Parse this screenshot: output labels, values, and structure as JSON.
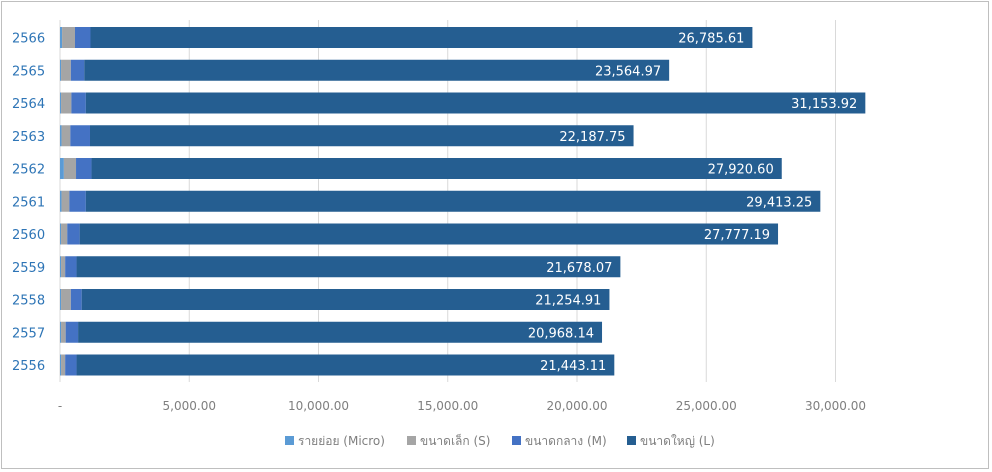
{
  "chart_data": {
    "type": "bar",
    "orientation": "horizontal",
    "stacked": true,
    "categories": [
      "2566",
      "2565",
      "2564",
      "2563",
      "2562",
      "2561",
      "2560",
      "2559",
      "2558",
      "2557",
      "2556"
    ],
    "series": [
      {
        "name": "รายย่อย (Micro)",
        "color": "#5b9bd5",
        "values": [
          80,
          40,
          40,
          60,
          150,
          60,
          40,
          40,
          40,
          40,
          40
        ]
      },
      {
        "name": "ขนาดเล็ก (S)",
        "color": "#a5a5a5",
        "values": [
          500,
          380,
          400,
          340,
          470,
          300,
          240,
          160,
          380,
          180,
          160
        ]
      },
      {
        "name": "ขนาดกลาง (M)",
        "color": "#4472c4",
        "values": [
          600,
          520,
          560,
          760,
          600,
          640,
          480,
          440,
          420,
          480,
          440
        ]
      },
      {
        "name": "ขนาดใหญ่ (L)",
        "color": "#255e91",
        "values": [
          25605.61,
          22624.97,
          30153.92,
          21027.75,
          26700.6,
          28413.25,
          27017.19,
          21038.07,
          20414.91,
          20268.14,
          20803.11
        ]
      }
    ],
    "totals": [
      26785.61,
      23564.97,
      31153.92,
      22187.75,
      27920.6,
      29413.25,
      27777.19,
      21678.07,
      21254.91,
      20968.14,
      21443.11
    ],
    "total_labels": [
      "26,785.61",
      "23,564.97",
      "31,153.92",
      "22,187.75",
      "27,920.60",
      "29,413.25",
      "27,777.19",
      "21,678.07",
      "21,254.91",
      "20,968.14",
      "21,443.11"
    ],
    "xlim": [
      0,
      32000
    ],
    "xticks": [
      0,
      5000,
      10000,
      15000,
      20000,
      25000,
      30000
    ],
    "xtick_labels": [
      "-",
      "5,000.00",
      "10,000.00",
      "15,000.00",
      "20,000.00",
      "25,000.00",
      "30,000.00"
    ],
    "grid": true,
    "legend_position": "bottom",
    "title": "",
    "xlabel": "",
    "ylabel": ""
  }
}
